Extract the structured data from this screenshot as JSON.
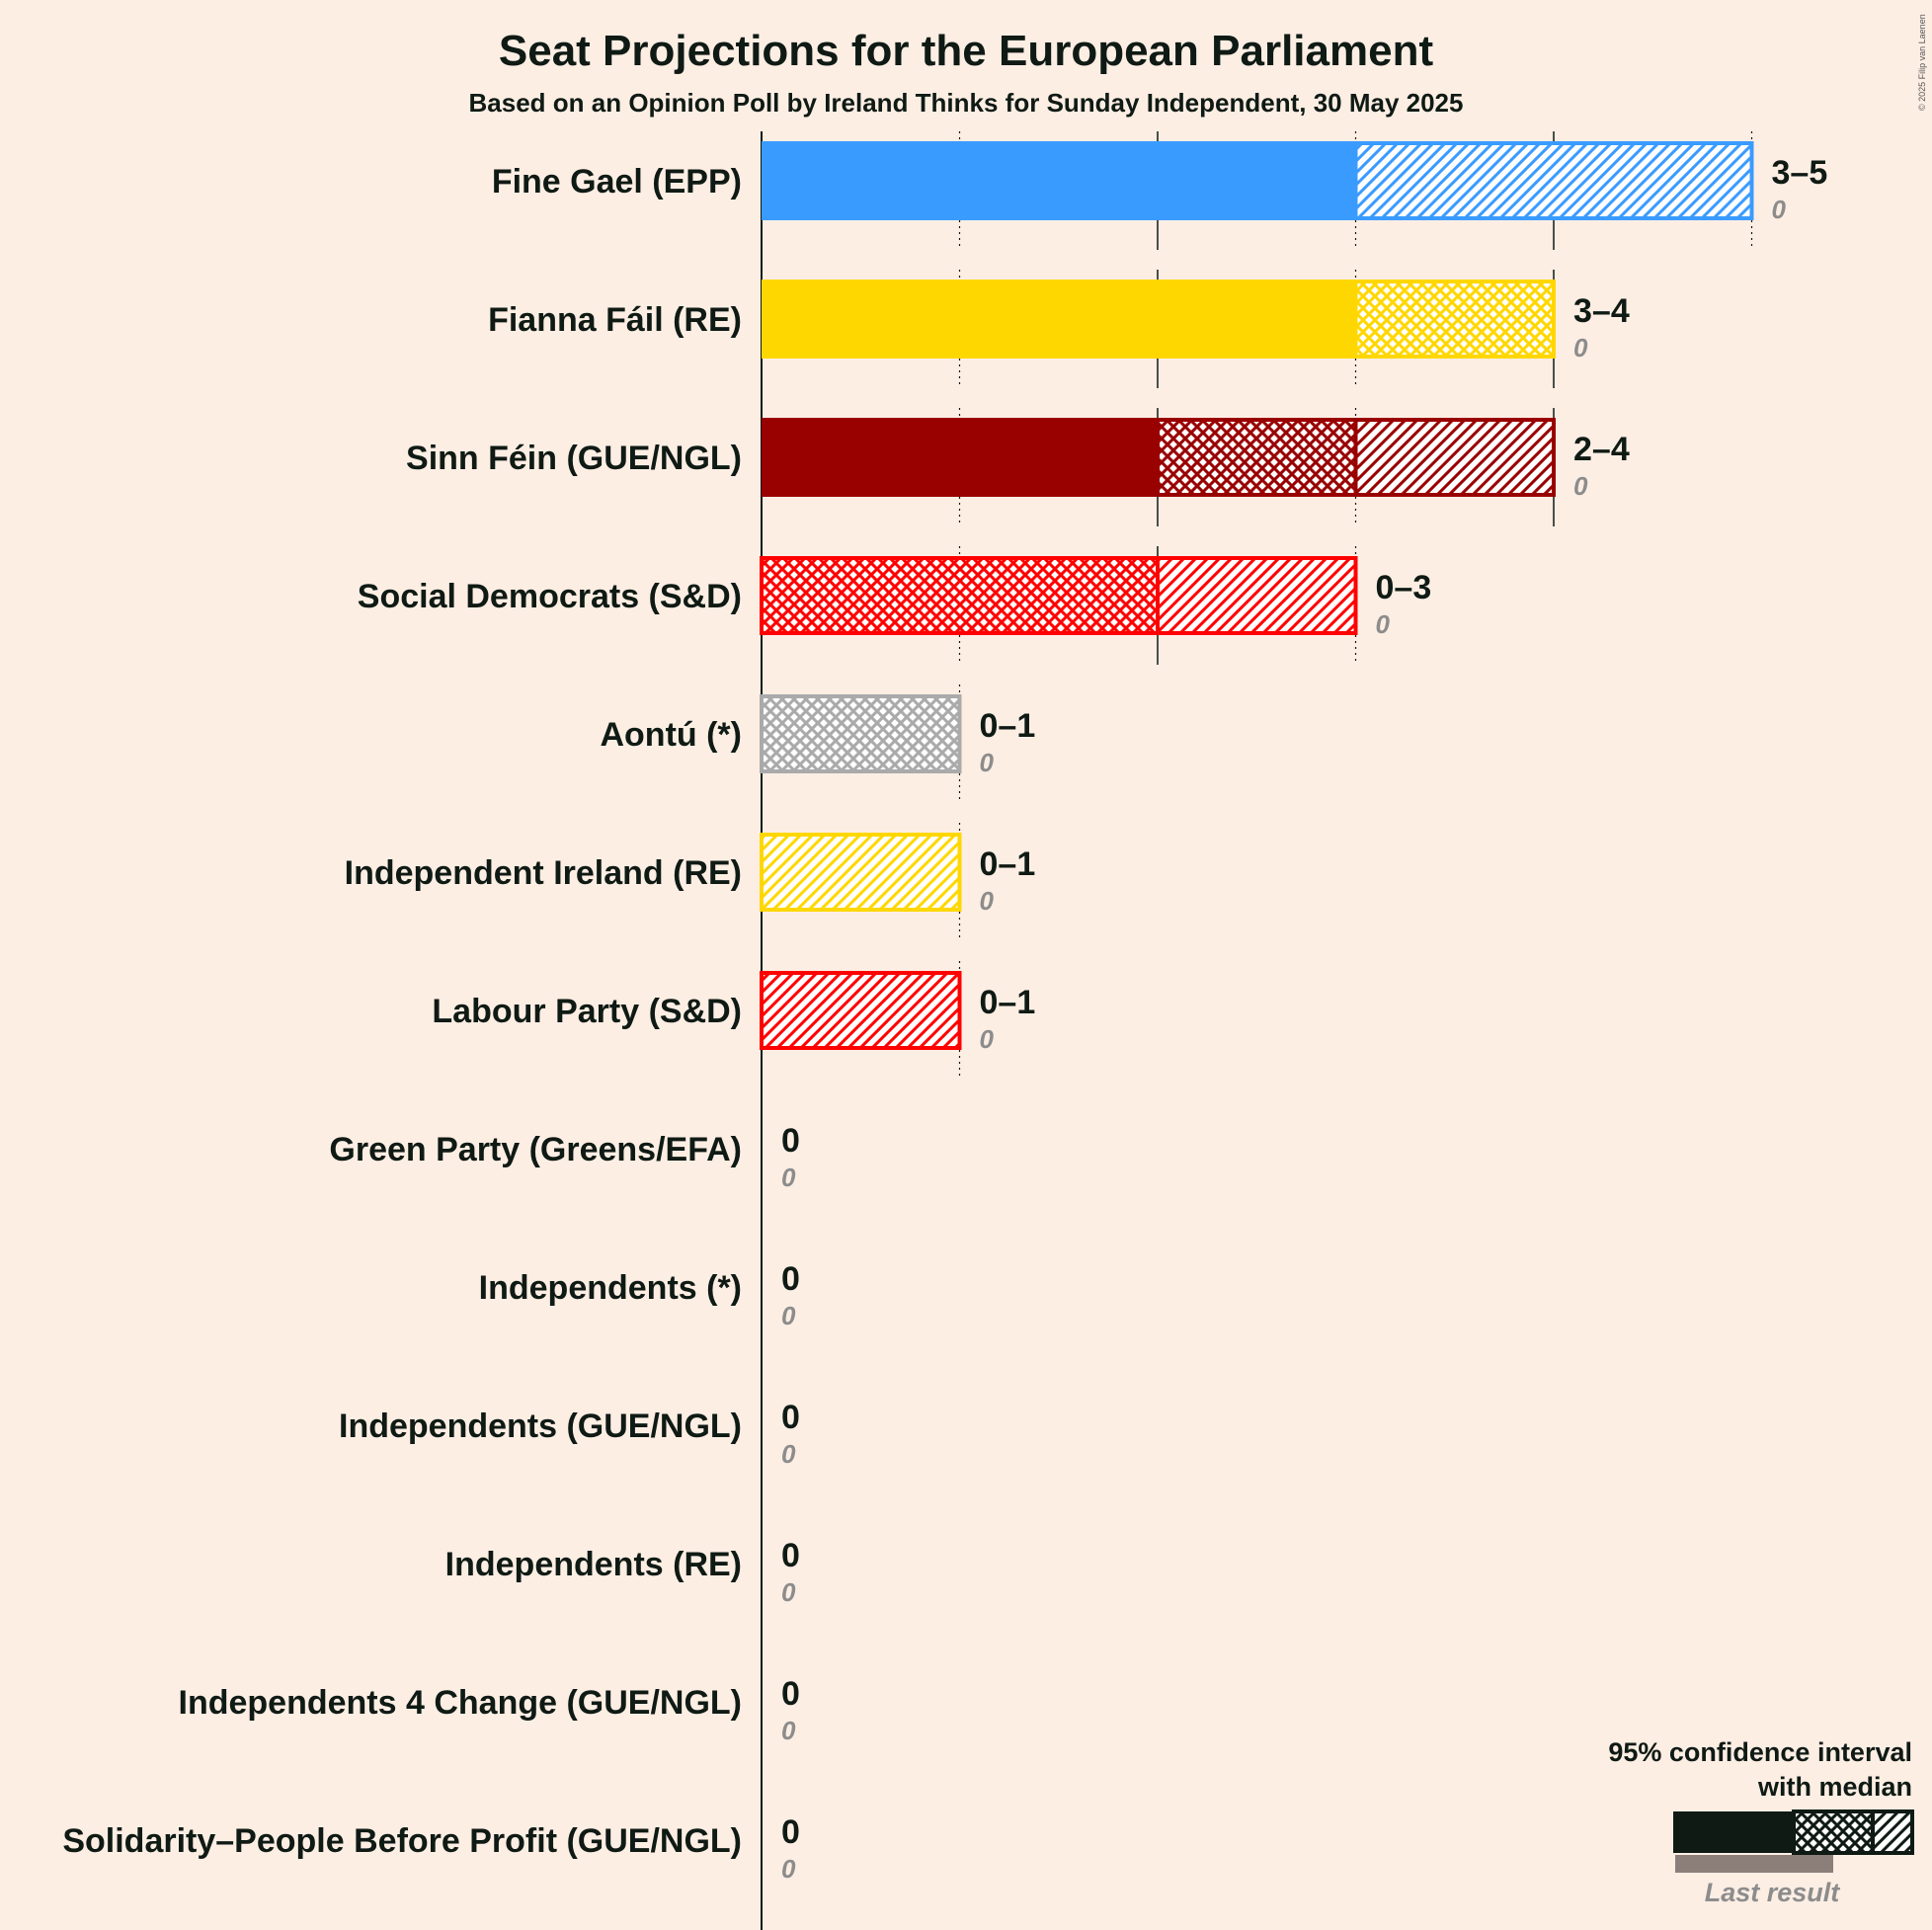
{
  "title": "Seat Projections for the European Parliament",
  "subtitle": "Based on an Opinion Poll by Ireland Thinks for Sunday Independent, 30 May 2025",
  "copyright": "© 2025 Filip van Laenen",
  "legend": {
    "line1": "95% confidence interval",
    "line2": "with median",
    "last_result": "Last result"
  },
  "chart_data": {
    "type": "bar",
    "orientation": "horizontal",
    "title": "Seat Projections for the European Parliament",
    "subtitle": "Based on an Opinion Poll by Ireland Thinks for Sunday Independent, 30 May 2025",
    "xlim": [
      0,
      5
    ],
    "grid": true,
    "legend_position": "bottom-right",
    "parties": [
      {
        "name": "Fine Gael (EPP)",
        "color": "#3A9BFF",
        "low": 3,
        "median": 3,
        "high": 5,
        "last_result": 0,
        "label": "3–5",
        "last_label": "0"
      },
      {
        "name": "Fianna Fáil (RE)",
        "color": "#FFD700",
        "low": 3,
        "median": 4,
        "high": 4,
        "last_result": 0,
        "label": "3–4",
        "last_label": "0"
      },
      {
        "name": "Sinn Féin (GUE/NGL)",
        "color": "#990000",
        "low": 2,
        "median": 3,
        "high": 4,
        "last_result": 0,
        "label": "2–4",
        "last_label": "0"
      },
      {
        "name": "Social Democrats (S&D)",
        "color": "#FF0000",
        "low": 0,
        "median": 2,
        "high": 3,
        "last_result": 0,
        "label": "0–3",
        "last_label": "0"
      },
      {
        "name": "Aontú (*)",
        "color": "#AAAAAA",
        "low": 0,
        "median": 1,
        "high": 1,
        "last_result": 0,
        "label": "0–1",
        "last_label": "0"
      },
      {
        "name": "Independent Ireland (RE)",
        "color": "#FFD700",
        "low": 0,
        "median": 0,
        "high": 1,
        "last_result": 0,
        "label": "0–1",
        "last_label": "0"
      },
      {
        "name": "Labour Party (S&D)",
        "color": "#FF0000",
        "low": 0,
        "median": 0,
        "high": 1,
        "last_result": 0,
        "label": "0–1",
        "last_label": "0"
      },
      {
        "name": "Green Party (Greens/EFA)",
        "color": "#0F1A14",
        "low": 0,
        "median": 0,
        "high": 0,
        "last_result": 0,
        "label": "0",
        "last_label": "0"
      },
      {
        "name": "Independents (*)",
        "color": "#0F1A14",
        "low": 0,
        "median": 0,
        "high": 0,
        "last_result": 0,
        "label": "0",
        "last_label": "0"
      },
      {
        "name": "Independents (GUE/NGL)",
        "color": "#0F1A14",
        "low": 0,
        "median": 0,
        "high": 0,
        "last_result": 0,
        "label": "0",
        "last_label": "0"
      },
      {
        "name": "Independents (RE)",
        "color": "#0F1A14",
        "low": 0,
        "median": 0,
        "high": 0,
        "last_result": 0,
        "label": "0",
        "last_label": "0"
      },
      {
        "name": "Independents 4 Change (GUE/NGL)",
        "color": "#0F1A14",
        "low": 0,
        "median": 0,
        "high": 0,
        "last_result": 0,
        "label": "0",
        "last_label": "0"
      },
      {
        "name": "Solidarity–People Before Profit (GUE/NGL)",
        "color": "#0F1A14",
        "low": 0,
        "median": 0,
        "high": 0,
        "last_result": 0,
        "label": "0",
        "last_label": "0"
      }
    ]
  }
}
